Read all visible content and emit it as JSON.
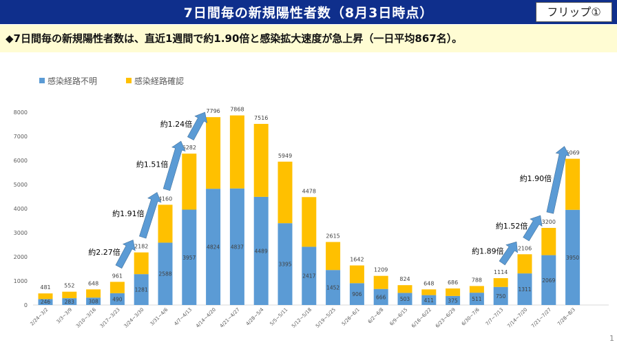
{
  "header": {
    "title": "7日間毎の新規陽性者数（8月3日時点）",
    "flip_label": "フリップ①"
  },
  "summary": {
    "text": "◆7日間毎の新規陽性者数は、直近1週間で約1.90倍と感染拡大速度が急上昇（一日平均867名）。"
  },
  "page_number": "1",
  "colors": {
    "header_bg": "#0f2f8c",
    "band_bg": "#fffcd3",
    "unknown_route": "#5b9bd5",
    "known_route": "#ffc000",
    "arrow": "#5b9bd5"
  },
  "chart_data": {
    "type": "bar",
    "stacked": true,
    "title": "7日間毎の新規陽性者数（8月3日時点）",
    "xlabel": "",
    "ylabel": "",
    "ylim": [
      0,
      8000
    ],
    "yticks": [
      0,
      1000,
      2000,
      3000,
      4000,
      5000,
      6000,
      7000,
      8000
    ],
    "grid": false,
    "legend_position": "top-left",
    "categories": [
      "2/24~3/2",
      "3/3~3/9",
      "3/10~3/16",
      "3/17~3/23",
      "3/24~3/30",
      "3/31~4/6",
      "4/7~4/13",
      "4/14~4/20",
      "4/21~4/27",
      "4/28~5/4",
      "5/5~5/11",
      "5/12~5/18",
      "5/19~5/25",
      "5/26~6/1",
      "6/2~6/8",
      "6/9~6/15",
      "6/16~6/22",
      "6/23~6/29",
      "6/30~7/6",
      "7/7~7/13",
      "7/14~7/20",
      "7/21~7/27",
      "7/28~8/3"
    ],
    "series": [
      {
        "name": "感染経路不明",
        "color": "#5b9bd5",
        "values": [
          246,
          283,
          308,
          490,
          1281,
          2588,
          3957,
          4824,
          4837,
          4489,
          3395,
          2417,
          1452,
          906,
          666,
          503,
          411,
          375,
          511,
          750,
          1311,
          2069,
          3950
        ]
      },
      {
        "name": "感染経路確認",
        "color": "#ffc000",
        "values": [
          235,
          269,
          340,
          471,
          901,
          1572,
          2325,
          2972,
          3031,
          3027,
          2554,
          2061,
          1163,
          736,
          543,
          321,
          237,
          311,
          277,
          364,
          795,
          1131,
          2119
        ]
      }
    ],
    "totals": [
      481,
      552,
      648,
      961,
      2182,
      4160,
      6282,
      7796,
      7868,
      7516,
      5949,
      4478,
      2615,
      1642,
      1209,
      824,
      648,
      686,
      788,
      1114,
      2106,
      3200,
      6069
    ],
    "annotations": [
      {
        "label": "約2.27倍",
        "from": 3,
        "to": 4
      },
      {
        "label": "約1.91倍",
        "from": 4,
        "to": 5
      },
      {
        "label": "約1.51倍",
        "from": 5,
        "to": 6
      },
      {
        "label": "約1.24倍",
        "from": 6,
        "to": 7
      },
      {
        "label": "約1.89倍",
        "from": 19,
        "to": 20
      },
      {
        "label": "約1.52倍",
        "from": 20,
        "to": 21
      },
      {
        "label": "約1.90倍",
        "from": 21,
        "to": 22
      }
    ]
  }
}
